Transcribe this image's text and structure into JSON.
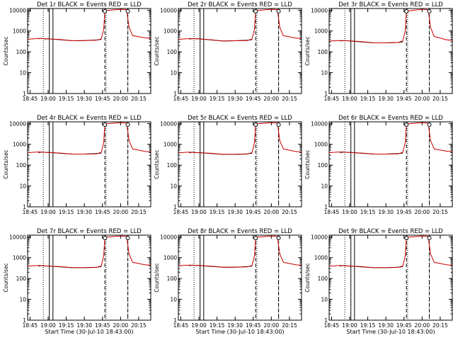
{
  "chart_data": [
    {
      "type": "line",
      "title": "Det 1r BLACK = Events RED = LLD",
      "xlabel": "",
      "ylabel": "Counts/sec",
      "yscale": "log",
      "ylim": [
        1,
        12000
      ],
      "xlim": [
        "18:43",
        "20:25"
      ],
      "x_ticks": [
        "18:45",
        "19:00",
        "19:15",
        "19:30",
        "19:45",
        "20:00",
        "20:15"
      ],
      "y_ticks": [
        "1",
        "10",
        "100",
        "1000",
        "10000"
      ],
      "series": [
        {
          "name": "Events",
          "color": "#000000",
          "x": [
            "18:52",
            "18:55",
            "18:58",
            "19:00",
            "19:10",
            "19:20",
            "19:30",
            "19:40",
            "19:44"
          ],
          "y": [
            420,
            440,
            410,
            420,
            380,
            340,
            350,
            370,
            390
          ]
        },
        {
          "name": "LLD",
          "color": "#cc0000",
          "x": [
            "18:43",
            "18:52",
            "18:58",
            "19:10",
            "19:20",
            "19:30",
            "19:40",
            "19:44",
            "19:46",
            "19:47",
            "20:00",
            "20:05",
            "20:07",
            "20:10",
            "20:20",
            "20:25"
          ],
          "y": [
            400,
            440,
            420,
            390,
            340,
            350,
            360,
            420,
            1200,
            9500,
            11000,
            10500,
            1500,
            600,
            470,
            440
          ]
        }
      ],
      "markers": {
        "dotted": [
          "18:56",
          "19:48",
          "20:06"
        ],
        "solid": [
          "19:01",
          "19:04"
        ],
        "dashed": [
          "19:47",
          "20:06"
        ]
      }
    },
    {
      "type": "line",
      "title": "Det 2r BLACK = Events RED = LLD",
      "xlabel": "",
      "ylabel": "Counts/sec",
      "yscale": "log",
      "ylim": [
        1,
        12000
      ],
      "xlim": [
        "18:43",
        "20:25"
      ],
      "x_ticks": [
        "18:45",
        "19:00",
        "19:15",
        "19:30",
        "19:45",
        "20:00",
        "20:15"
      ],
      "y_ticks": [
        "1",
        "10",
        "100",
        "1000",
        "10000"
      ],
      "series": [
        {
          "name": "Events",
          "color": "#000000",
          "x": [
            "18:52",
            "18:55",
            "18:58",
            "19:00",
            "19:10",
            "19:20",
            "19:30",
            "19:40",
            "19:44"
          ],
          "y": [
            410,
            430,
            420,
            420,
            370,
            330,
            340,
            360,
            380
          ]
        },
        {
          "name": "LLD",
          "color": "#cc0000",
          "x": [
            "18:43",
            "18:52",
            "18:58",
            "19:10",
            "19:20",
            "19:30",
            "19:40",
            "19:44",
            "19:46",
            "19:47",
            "20:00",
            "20:05",
            "20:07",
            "20:10",
            "20:20",
            "20:25"
          ],
          "y": [
            400,
            430,
            420,
            380,
            330,
            340,
            350,
            410,
            1200,
            9500,
            11000,
            10500,
            1500,
            600,
            460,
            430
          ]
        }
      ],
      "markers": {
        "dotted": [
          "18:56",
          "19:48",
          "20:06"
        ],
        "solid": [
          "19:01",
          "19:04"
        ],
        "dashed": [
          "19:47",
          "20:06"
        ]
      }
    },
    {
      "type": "line",
      "title": "Det 3r BLACK = Events RED = LLD",
      "xlabel": "",
      "ylabel": "Counts/sec",
      "yscale": "log",
      "ylim": [
        1,
        12000
      ],
      "xlim": [
        "18:43",
        "20:25"
      ],
      "x_ticks": [
        "18:45",
        "19:00",
        "19:15",
        "19:30",
        "19:45",
        "20:00",
        "20:15"
      ],
      "y_ticks": [
        "1",
        "10",
        "100",
        "1000",
        "10000"
      ],
      "series": [
        {
          "name": "Events",
          "color": "#000000",
          "x": [
            "18:52",
            "18:55",
            "18:58",
            "19:00",
            "19:10",
            "19:20",
            "19:30",
            "19:40",
            "19:44"
          ],
          "y": [
            330,
            350,
            340,
            330,
            300,
            270,
            270,
            280,
            300
          ]
        },
        {
          "name": "LLD",
          "color": "#cc0000",
          "x": [
            "18:43",
            "18:52",
            "18:58",
            "19:10",
            "19:20",
            "19:30",
            "19:40",
            "19:44",
            "19:46",
            "19:47",
            "20:00",
            "20:05",
            "20:07",
            "20:10",
            "20:20",
            "20:25"
          ],
          "y": [
            330,
            350,
            340,
            310,
            270,
            270,
            280,
            330,
            1000,
            9000,
            11000,
            10500,
            1500,
            550,
            380,
            350
          ]
        }
      ],
      "markers": {
        "dotted": [
          "18:56",
          "19:48",
          "20:06"
        ],
        "solid": [
          "19:01",
          "19:04"
        ],
        "dashed": [
          "19:47",
          "20:06"
        ]
      }
    },
    {
      "type": "line",
      "title": "Det 4r BLACK = Events RED = LLD",
      "xlabel": "",
      "ylabel": "Counts/sec",
      "yscale": "log",
      "ylim": [
        1,
        12000
      ],
      "xlim": [
        "18:43",
        "20:25"
      ],
      "x_ticks": [
        "18:45",
        "19:00",
        "19:15",
        "19:30",
        "19:45",
        "20:00",
        "20:15"
      ],
      "y_ticks": [
        "1",
        "10",
        "100",
        "1000",
        "10000"
      ],
      "series": [
        {
          "name": "Events",
          "color": "#000000",
          "x": [
            "18:52",
            "18:55",
            "18:58",
            "19:00",
            "19:10",
            "19:20",
            "19:30",
            "19:40",
            "19:44"
          ],
          "y": [
            400,
            430,
            410,
            410,
            370,
            340,
            340,
            360,
            380
          ]
        },
        {
          "name": "LLD",
          "color": "#cc0000",
          "x": [
            "18:43",
            "18:52",
            "18:58",
            "19:10",
            "19:20",
            "19:30",
            "19:40",
            "19:44",
            "19:46",
            "19:47",
            "20:00",
            "20:05",
            "20:07",
            "20:10",
            "20:20",
            "20:25"
          ],
          "y": [
            400,
            430,
            410,
            380,
            340,
            340,
            350,
            410,
            1200,
            9500,
            11000,
            10500,
            1500,
            600,
            460,
            430
          ]
        }
      ],
      "markers": {
        "dotted": [
          "18:56",
          "19:48",
          "20:06"
        ],
        "solid": [
          "19:01",
          "19:04"
        ],
        "dashed": [
          "19:47",
          "20:06"
        ]
      }
    },
    {
      "type": "line",
      "title": "Det 5r BLACK = Events RED = LLD",
      "xlabel": "",
      "ylabel": "Counts/sec",
      "yscale": "log",
      "ylim": [
        1,
        12000
      ],
      "xlim": [
        "18:43",
        "20:25"
      ],
      "x_ticks": [
        "18:45",
        "19:00",
        "19:15",
        "19:30",
        "19:45",
        "20:00",
        "20:15"
      ],
      "y_ticks": [
        "1",
        "10",
        "100",
        "1000",
        "10000"
      ],
      "series": [
        {
          "name": "Events",
          "color": "#000000",
          "x": [
            "18:52",
            "18:55",
            "18:58",
            "19:00",
            "19:10",
            "19:20",
            "19:30",
            "19:40",
            "19:44"
          ],
          "y": [
            390,
            420,
            400,
            400,
            360,
            330,
            330,
            350,
            370
          ]
        },
        {
          "name": "LLD",
          "color": "#cc0000",
          "x": [
            "18:43",
            "18:52",
            "18:58",
            "19:10",
            "19:20",
            "19:30",
            "19:40",
            "19:44",
            "19:46",
            "19:47",
            "20:00",
            "20:05",
            "20:07",
            "20:10",
            "20:20",
            "20:25"
          ],
          "y": [
            390,
            420,
            400,
            370,
            330,
            330,
            340,
            400,
            1200,
            9500,
            11000,
            10500,
            1500,
            600,
            450,
            420
          ]
        }
      ],
      "markers": {
        "dotted": [
          "18:56",
          "19:48",
          "20:06"
        ],
        "solid": [
          "19:01",
          "19:04"
        ],
        "dashed": [
          "19:47",
          "20:06"
        ]
      }
    },
    {
      "type": "line",
      "title": "Det 6r BLACK = Events RED = LLD",
      "xlabel": "",
      "ylabel": "Counts/sec",
      "yscale": "log",
      "ylim": [
        1,
        12000
      ],
      "xlim": [
        "18:43",
        "20:25"
      ],
      "x_ticks": [
        "18:45",
        "19:00",
        "19:15",
        "19:30",
        "19:45",
        "20:00",
        "20:15"
      ],
      "y_ticks": [
        "1",
        "10",
        "100",
        "1000",
        "10000"
      ],
      "series": [
        {
          "name": "Events",
          "color": "#000000",
          "x": [
            "18:52",
            "18:55",
            "18:58",
            "19:00",
            "19:10",
            "19:20",
            "19:30",
            "19:40",
            "19:44"
          ],
          "y": [
            400,
            430,
            410,
            410,
            370,
            340,
            340,
            360,
            380
          ]
        },
        {
          "name": "LLD",
          "color": "#cc0000",
          "x": [
            "18:43",
            "18:52",
            "18:58",
            "19:10",
            "19:20",
            "19:30",
            "19:40",
            "19:44",
            "19:46",
            "19:47",
            "20:00",
            "20:05",
            "20:07",
            "20:10",
            "20:20",
            "20:25"
          ],
          "y": [
            400,
            430,
            410,
            380,
            340,
            340,
            350,
            410,
            1200,
            9500,
            11000,
            10500,
            1500,
            600,
            470,
            440
          ]
        }
      ],
      "markers": {
        "dotted": [
          "18:56",
          "19:48",
          "20:06"
        ],
        "solid": [
          "19:01",
          "19:04"
        ],
        "dashed": [
          "19:47",
          "20:06"
        ]
      }
    },
    {
      "type": "line",
      "title": "Det 7r BLACK = Events RED = LLD",
      "xlabel": "Start Time (30-Jul-10 18:43:00)",
      "ylabel": "Counts/sec",
      "yscale": "log",
      "ylim": [
        1,
        12000
      ],
      "xlim": [
        "18:43",
        "20:25"
      ],
      "x_ticks": [
        "18:45",
        "19:00",
        "19:15",
        "19:30",
        "19:45",
        "20:00",
        "20:15"
      ],
      "y_ticks": [
        "1",
        "10",
        "100",
        "1000",
        "10000"
      ],
      "series": [
        {
          "name": "Events",
          "color": "#000000",
          "x": [
            "18:52",
            "18:55",
            "18:58",
            "19:00",
            "19:10",
            "19:20",
            "19:30",
            "19:40",
            "19:44"
          ],
          "y": [
            390,
            420,
            400,
            400,
            360,
            330,
            330,
            350,
            370
          ]
        },
        {
          "name": "LLD",
          "color": "#cc0000",
          "x": [
            "18:43",
            "18:52",
            "18:58",
            "19:10",
            "19:20",
            "19:30",
            "19:40",
            "19:44",
            "19:46",
            "19:47",
            "20:00",
            "20:05",
            "20:07",
            "20:10",
            "20:20",
            "20:25"
          ],
          "y": [
            390,
            420,
            400,
            370,
            330,
            330,
            340,
            400,
            1200,
            9500,
            11000,
            10500,
            1500,
            600,
            460,
            430
          ]
        }
      ],
      "markers": {
        "dotted": [
          "18:56",
          "19:48",
          "20:06"
        ],
        "solid": [
          "19:01",
          "19:04"
        ],
        "dashed": [
          "19:47",
          "20:06"
        ]
      }
    },
    {
      "type": "line",
      "title": "Det 8r BLACK = Events RED = LLD",
      "xlabel": "Start Time (30-Jul-10 18:43:00)",
      "ylabel": "Counts/sec",
      "yscale": "log",
      "ylim": [
        1,
        12000
      ],
      "xlim": [
        "18:43",
        "20:25"
      ],
      "x_ticks": [
        "18:45",
        "19:00",
        "19:15",
        "19:30",
        "19:45",
        "20:00",
        "20:15"
      ],
      "y_ticks": [
        "1",
        "10",
        "100",
        "1000",
        "10000"
      ],
      "series": [
        {
          "name": "Events",
          "color": "#000000",
          "x": [
            "18:52",
            "18:55",
            "18:58",
            "19:00",
            "19:10",
            "19:20",
            "19:30",
            "19:40",
            "19:44"
          ],
          "y": [
            410,
            440,
            420,
            420,
            380,
            350,
            350,
            370,
            390
          ]
        },
        {
          "name": "LLD",
          "color": "#cc0000",
          "x": [
            "18:43",
            "18:52",
            "18:58",
            "19:10",
            "19:20",
            "19:30",
            "19:40",
            "19:44",
            "19:46",
            "19:47",
            "20:00",
            "20:05",
            "20:07",
            "20:10",
            "20:20",
            "20:25"
          ],
          "y": [
            410,
            440,
            420,
            390,
            350,
            350,
            360,
            420,
            1200,
            9500,
            11000,
            10500,
            1500,
            600,
            460,
            430
          ]
        }
      ],
      "markers": {
        "dotted": [
          "18:56",
          "19:48",
          "20:06"
        ],
        "solid": [
          "19:01",
          "19:04"
        ],
        "dashed": [
          "19:47",
          "20:06"
        ]
      }
    },
    {
      "type": "line",
      "title": "Det 9r BLACK = Events RED = LLD",
      "xlabel": "Start Time (30-Jul-10 18:43:00)",
      "ylabel": "Counts/sec",
      "yscale": "log",
      "ylim": [
        1,
        12000
      ],
      "xlim": [
        "18:43",
        "20:25"
      ],
      "x_ticks": [
        "18:45",
        "19:00",
        "19:15",
        "19:30",
        "19:45",
        "20:00",
        "20:15"
      ],
      "y_ticks": [
        "1",
        "10",
        "100",
        "1000",
        "10000"
      ],
      "series": [
        {
          "name": "Events",
          "color": "#000000",
          "x": [
            "18:52",
            "18:55",
            "18:58",
            "19:00",
            "19:10",
            "19:20",
            "19:30",
            "19:40",
            "19:44"
          ],
          "y": [
            390,
            420,
            400,
            400,
            360,
            330,
            330,
            350,
            370
          ]
        },
        {
          "name": "LLD",
          "color": "#cc0000",
          "x": [
            "18:43",
            "18:52",
            "18:58",
            "19:10",
            "19:20",
            "19:30",
            "19:40",
            "19:44",
            "19:46",
            "19:47",
            "20:00",
            "20:05",
            "20:07",
            "20:10",
            "20:20",
            "20:25"
          ],
          "y": [
            390,
            420,
            400,
            370,
            330,
            330,
            340,
            400,
            1200,
            9500,
            11000,
            10500,
            1500,
            600,
            460,
            430
          ]
        }
      ],
      "markers": {
        "dotted": [
          "18:56",
          "19:48",
          "20:06"
        ],
        "solid": [
          "19:01",
          "19:04"
        ],
        "dashed": [
          "19:47",
          "20:06"
        ]
      }
    }
  ]
}
